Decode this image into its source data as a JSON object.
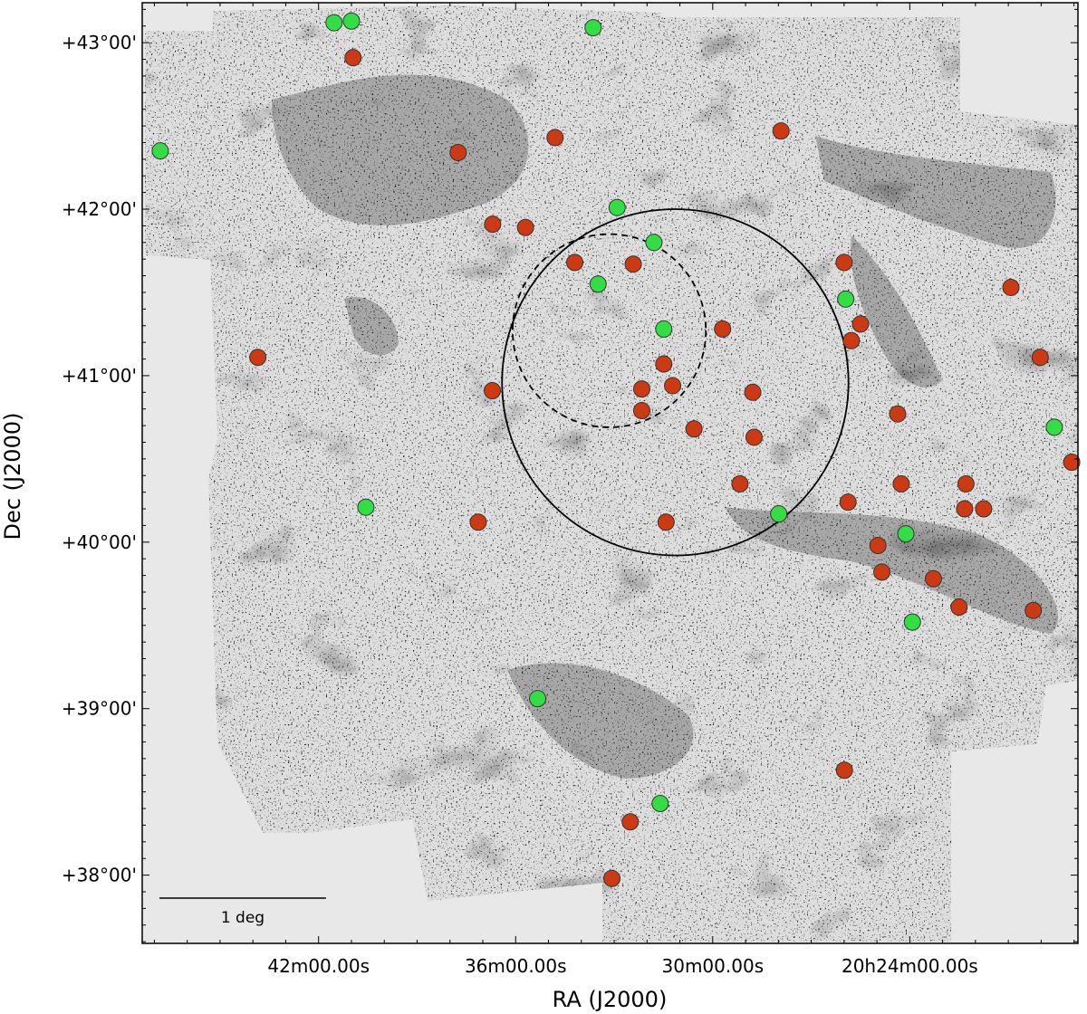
{
  "chart_data": {
    "type": "scatter",
    "title": "",
    "xlabel": "RA (J2000)",
    "ylabel": "Dec (J2000)",
    "x_unit": "minutes of RA (20h00m + value)",
    "y_unit": "degrees",
    "xlim": [
      47.37,
      18.88
    ],
    "ylim": [
      37.59,
      43.24
    ],
    "x_ticks": [
      {
        "value": 42,
        "label": "42m00.00s"
      },
      {
        "value": 36,
        "label": "36m00.00s"
      },
      {
        "value": 30,
        "label": "30m00.00s"
      },
      {
        "value": 24,
        "label": "20h24m00.00s"
      }
    ],
    "y_ticks": [
      {
        "value": 43,
        "label": "+43°00'"
      },
      {
        "value": 42,
        "label": "+42°00'"
      },
      {
        "value": 41,
        "label": "+41°00'"
      },
      {
        "value": 40,
        "label": "+40°00'"
      },
      {
        "value": 39,
        "label": "+39°00'"
      },
      {
        "value": 38,
        "label": "+38°00'"
      }
    ],
    "background": "greyscale nebula image mosaic",
    "scalebar": {
      "label": "1 deg",
      "length_deg": 1
    },
    "overlay_circles": [
      {
        "style": "solid",
        "ra": 31.14,
        "dec": 40.96,
        "radius_deg": 1.04
      },
      {
        "style": "dashed",
        "ra": 33.15,
        "dec": 41.27,
        "radius_deg": 0.58
      }
    ],
    "grid": false,
    "colors": {
      "red": "#cc3a14",
      "green": "#33dd44",
      "edge": "#333333",
      "frame": "#000000"
    },
    "series": [
      {
        "color": "red",
        "points": [
          {
            "x": 40.95,
            "y": 42.91
          },
          {
            "x": 37.75,
            "y": 42.34
          },
          {
            "x": 34.8,
            "y": 42.43
          },
          {
            "x": 27.92,
            "y": 42.47
          },
          {
            "x": 36.7,
            "y": 41.91
          },
          {
            "x": 35.7,
            "y": 41.89
          },
          {
            "x": 34.2,
            "y": 41.68
          },
          {
            "x": 32.42,
            "y": 41.67
          },
          {
            "x": 26.0,
            "y": 41.68
          },
          {
            "x": 20.92,
            "y": 41.53
          },
          {
            "x": 29.7,
            "y": 41.28
          },
          {
            "x": 25.5,
            "y": 41.31
          },
          {
            "x": 25.78,
            "y": 41.21
          },
          {
            "x": 43.85,
            "y": 41.11
          },
          {
            "x": 36.71,
            "y": 40.91
          },
          {
            "x": 31.49,
            "y": 41.07
          },
          {
            "x": 32.16,
            "y": 40.92
          },
          {
            "x": 31.22,
            "y": 40.94
          },
          {
            "x": 28.78,
            "y": 40.9
          },
          {
            "x": 32.16,
            "y": 40.79
          },
          {
            "x": 30.57,
            "y": 40.68
          },
          {
            "x": 28.74,
            "y": 40.63
          },
          {
            "x": 24.37,
            "y": 40.77
          },
          {
            "x": 29.17,
            "y": 40.35
          },
          {
            "x": 24.26,
            "y": 40.35
          },
          {
            "x": 25.88,
            "y": 40.24
          },
          {
            "x": 22.29,
            "y": 40.35
          },
          {
            "x": 19.07,
            "y": 40.48
          },
          {
            "x": 37.14,
            "y": 40.12
          },
          {
            "x": 31.42,
            "y": 40.12
          },
          {
            "x": 22.33,
            "y": 40.2
          },
          {
            "x": 21.75,
            "y": 40.2
          },
          {
            "x": 24.97,
            "y": 39.98
          },
          {
            "x": 24.85,
            "y": 39.82
          },
          {
            "x": 23.28,
            "y": 39.78
          },
          {
            "x": 22.5,
            "y": 39.61
          },
          {
            "x": 20.24,
            "y": 39.59
          },
          {
            "x": 20.03,
            "y": 41.11
          },
          {
            "x": 25.99,
            "y": 38.63
          },
          {
            "x": 32.51,
            "y": 38.32
          },
          {
            "x": 33.07,
            "y": 37.98
          }
        ]
      },
      {
        "color": "green",
        "points": [
          {
            "x": 41.53,
            "y": 43.12
          },
          {
            "x": 41.0,
            "y": 43.13
          },
          {
            "x": 33.64,
            "y": 43.09
          },
          {
            "x": 46.82,
            "y": 42.35
          },
          {
            "x": 32.91,
            "y": 42.01
          },
          {
            "x": 31.79,
            "y": 41.8
          },
          {
            "x": 33.49,
            "y": 41.55
          },
          {
            "x": 25.95,
            "y": 41.46
          },
          {
            "x": 31.49,
            "y": 41.28
          },
          {
            "x": 19.6,
            "y": 40.69
          },
          {
            "x": 40.56,
            "y": 40.21
          },
          {
            "x": 27.99,
            "y": 40.17
          },
          {
            "x": 24.12,
            "y": 40.05
          },
          {
            "x": 23.92,
            "y": 39.52
          },
          {
            "x": 35.33,
            "y": 39.06
          },
          {
            "x": 31.6,
            "y": 38.43
          }
        ]
      }
    ]
  }
}
